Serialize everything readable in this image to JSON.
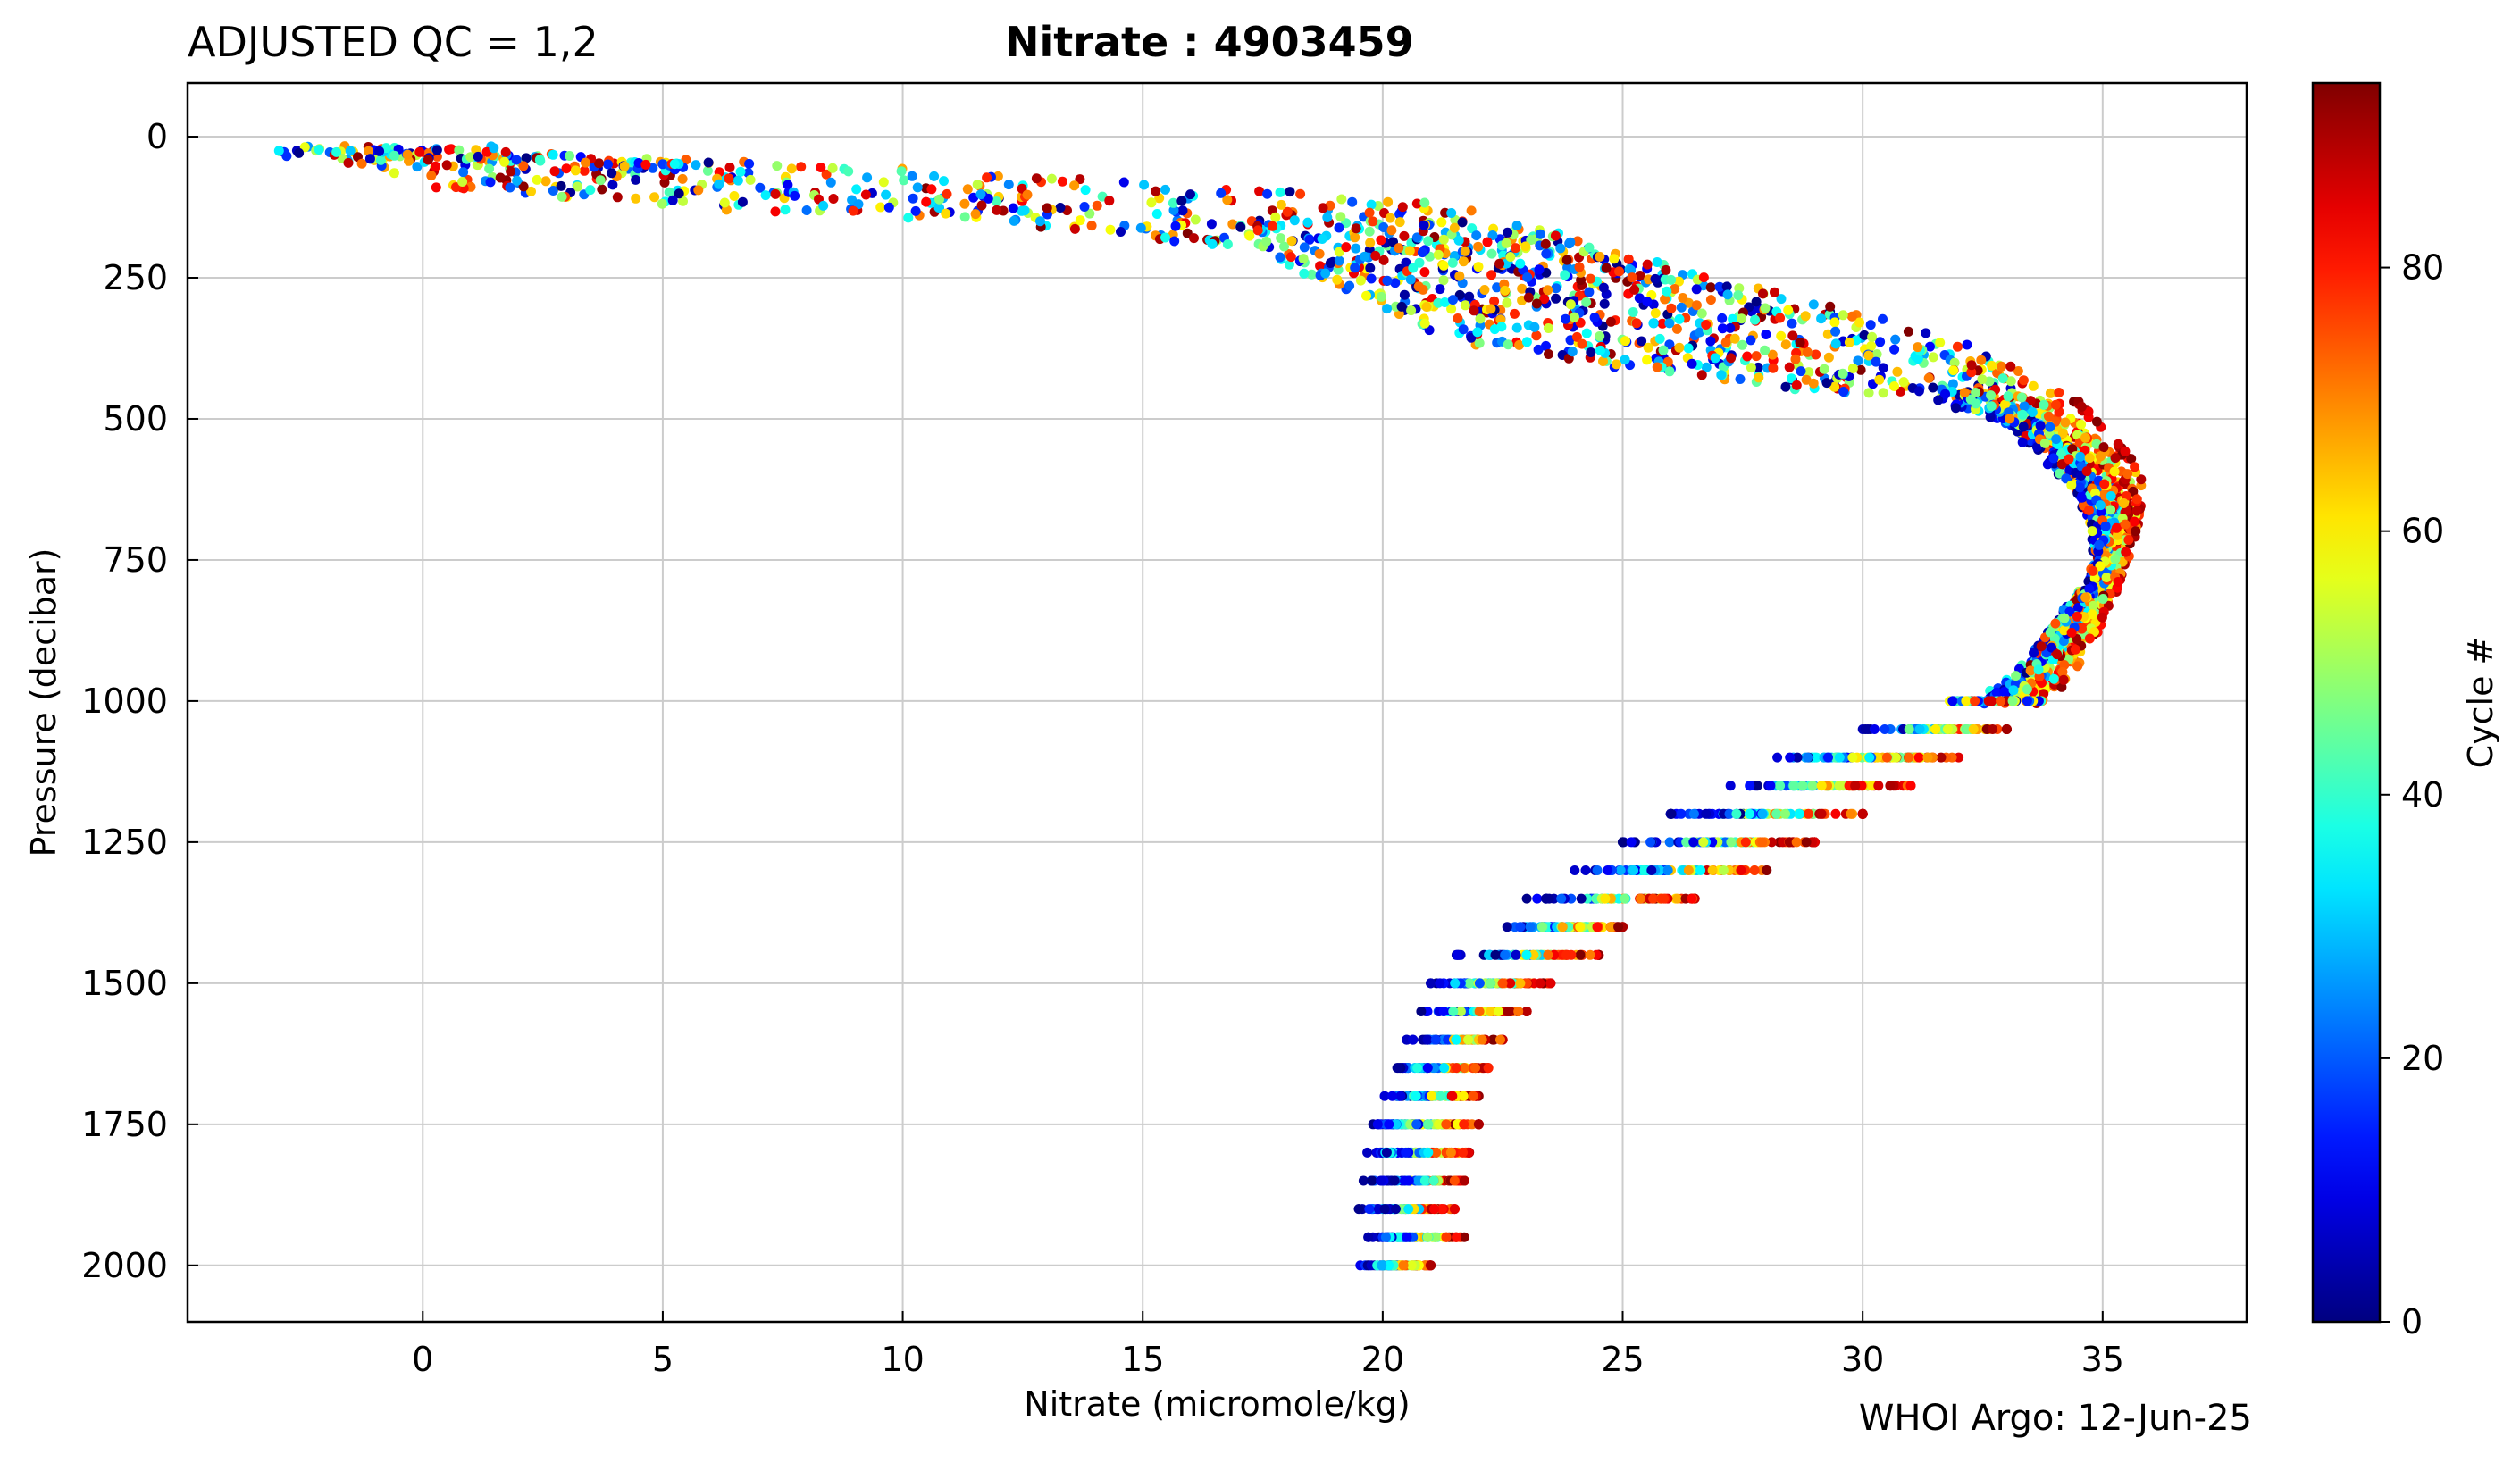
{
  "header": {
    "qc_label": "ADJUSTED QC = 1,2",
    "title": "Nitrate : 4903459"
  },
  "footer": {
    "credit": "WHOI Argo: 12-Jun-25"
  },
  "chart_data": {
    "type": "scatter",
    "title": "Nitrate : 4903459",
    "subtitle": "ADJUSTED QC = 1,2",
    "xlabel": "Nitrate  (micromole/kg)",
    "ylabel": "Pressure  (decibar)",
    "xlim": [
      -4.9,
      38
    ],
    "ylim": [
      2100,
      -95
    ],
    "y_inverted": true,
    "grid": true,
    "xticks": [
      0,
      5,
      10,
      15,
      20,
      25,
      30,
      35
    ],
    "yticks": [
      0,
      250,
      500,
      750,
      1000,
      1250,
      1500,
      1750,
      2000
    ],
    "colorbar": {
      "label": "Cycle #",
      "range": [
        0,
        94
      ],
      "ticks": [
        0,
        20,
        40,
        60,
        80
      ],
      "colormap": "jet"
    },
    "footer": "WHOI Argo: 12-Jun-25",
    "profile_envelope": [
      {
        "pressure": 30,
        "nitrate_min": -3,
        "nitrate_max": 1.5
      },
      {
        "pressure": 60,
        "nitrate_min": -0.5,
        "nitrate_max": 10
      },
      {
        "pressure": 90,
        "nitrate_min": 0,
        "nitrate_max": 17
      },
      {
        "pressure": 120,
        "nitrate_min": 5,
        "nitrate_max": 21
      },
      {
        "pressure": 150,
        "nitrate_min": 12,
        "nitrate_max": 23
      },
      {
        "pressure": 200,
        "nitrate_min": 17.5,
        "nitrate_max": 24.5
      },
      {
        "pressure": 250,
        "nitrate_min": 18.5,
        "nitrate_max": 27
      },
      {
        "pressure": 300,
        "nitrate_min": 20,
        "nitrate_max": 29.5
      },
      {
        "pressure": 350,
        "nitrate_min": 21,
        "nitrate_max": 31.5
      },
      {
        "pressure": 400,
        "nitrate_min": 24,
        "nitrate_max": 33
      },
      {
        "pressure": 450,
        "nitrate_min": 29,
        "nitrate_max": 34.2
      },
      {
        "pressure": 500,
        "nitrate_min": 31.5,
        "nitrate_max": 34.8
      },
      {
        "pressure": 550,
        "nitrate_min": 32.5,
        "nitrate_max": 35.4
      },
      {
        "pressure": 600,
        "nitrate_min": 33.2,
        "nitrate_max": 35.8
      },
      {
        "pressure": 650,
        "nitrate_min": 33.8,
        "nitrate_max": 35.8
      },
      {
        "pressure": 700,
        "nitrate_min": 34.2,
        "nitrate_max": 35.7
      },
      {
        "pressure": 750,
        "nitrate_min": 34.4,
        "nitrate_max": 35.5
      },
      {
        "pressure": 800,
        "nitrate_min": 34.2,
        "nitrate_max": 35.3
      },
      {
        "pressure": 850,
        "nitrate_min": 33.5,
        "nitrate_max": 35.0
      },
      {
        "pressure": 900,
        "nitrate_min": 33,
        "nitrate_max": 34.8
      },
      {
        "pressure": 950,
        "nitrate_min": 32.5,
        "nitrate_max": 34.4
      },
      {
        "pressure": 1000,
        "nitrate_min": 31.7,
        "nitrate_max": 33.8
      },
      {
        "pressure": 1050,
        "nitrate_min": 30,
        "nitrate_max": 33
      },
      {
        "pressure": 1100,
        "nitrate_min": 28,
        "nitrate_max": 32
      },
      {
        "pressure": 1150,
        "nitrate_min": 27,
        "nitrate_max": 31
      },
      {
        "pressure": 1200,
        "nitrate_min": 26,
        "nitrate_max": 30
      },
      {
        "pressure": 1250,
        "nitrate_min": 25,
        "nitrate_max": 29
      },
      {
        "pressure": 1300,
        "nitrate_min": 24,
        "nitrate_max": 28
      },
      {
        "pressure": 1350,
        "nitrate_min": 23,
        "nitrate_max": 26.5
      },
      {
        "pressure": 1400,
        "nitrate_min": 22.5,
        "nitrate_max": 25
      },
      {
        "pressure": 1450,
        "nitrate_min": 21.5,
        "nitrate_max": 24.5
      },
      {
        "pressure": 1500,
        "nitrate_min": 21,
        "nitrate_max": 23.5
      },
      {
        "pressure": 1550,
        "nitrate_min": 20.8,
        "nitrate_max": 23
      },
      {
        "pressure": 1600,
        "nitrate_min": 20.5,
        "nitrate_max": 22.5
      },
      {
        "pressure": 1650,
        "nitrate_min": 20.2,
        "nitrate_max": 22.2
      },
      {
        "pressure": 1700,
        "nitrate_min": 20,
        "nitrate_max": 22
      },
      {
        "pressure": 1750,
        "nitrate_min": 19.8,
        "nitrate_max": 22
      },
      {
        "pressure": 1800,
        "nitrate_min": 19.6,
        "nitrate_max": 21.8
      },
      {
        "pressure": 1850,
        "nitrate_min": 19.6,
        "nitrate_max": 21.7
      },
      {
        "pressure": 1900,
        "nitrate_min": 19.5,
        "nitrate_max": 21.5
      },
      {
        "pressure": 1950,
        "nitrate_min": 19.7,
        "nitrate_max": 21.7
      },
      {
        "pressure": 2000,
        "nitrate_min": 19.5,
        "nitrate_max": 21
      }
    ],
    "cycles_total": 94
  }
}
